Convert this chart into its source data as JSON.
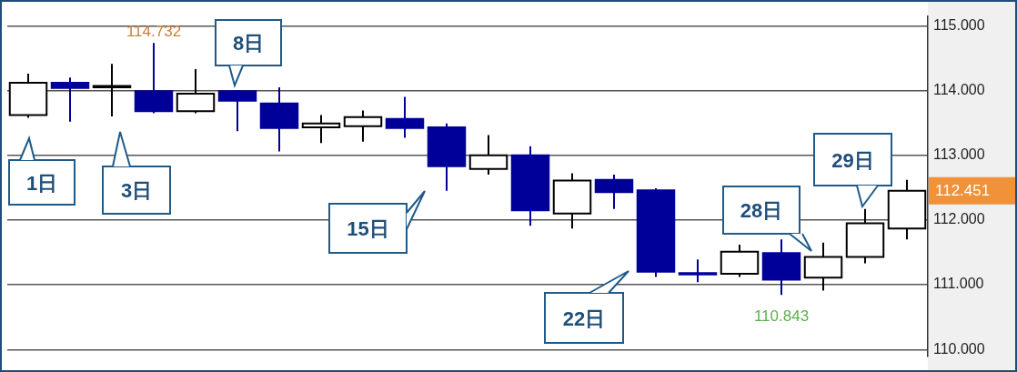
{
  "chart_data": {
    "type": "candlestick",
    "categories": [
      null,
      null,
      null,
      null,
      null,
      null,
      null,
      null,
      null,
      null,
      null,
      null,
      null,
      null,
      null,
      null,
      null,
      null,
      null,
      null,
      null,
      null
    ],
    "ohlc": [
      [
        113.62,
        114.26,
        113.58,
        114.12
      ],
      [
        114.12,
        114.2,
        113.52,
        114.04
      ],
      [
        114.05,
        114.41,
        113.6,
        114.07
      ],
      [
        113.99,
        114.732,
        113.65,
        113.68
      ],
      [
        113.68,
        114.33,
        113.65,
        113.95
      ],
      [
        113.99,
        114.0,
        113.37,
        113.84
      ],
      [
        113.8,
        114.05,
        113.06,
        113.42
      ],
      [
        113.43,
        113.62,
        113.19,
        113.49
      ],
      [
        113.45,
        113.69,
        113.21,
        113.59
      ],
      [
        113.56,
        113.9,
        113.27,
        113.42
      ],
      [
        113.43,
        113.49,
        112.45,
        112.83
      ],
      [
        112.79,
        113.31,
        112.7,
        113.0
      ],
      [
        113.0,
        113.14,
        111.91,
        112.15
      ],
      [
        112.1,
        112.72,
        111.87,
        112.61
      ],
      [
        112.62,
        112.7,
        112.17,
        112.43
      ],
      [
        112.46,
        112.49,
        111.12,
        111.2
      ],
      [
        111.18,
        111.39,
        111.04,
        111.16
      ],
      [
        111.17,
        111.62,
        111.12,
        111.51
      ],
      [
        111.49,
        111.7,
        110.843,
        111.08
      ],
      [
        111.11,
        111.65,
        110.91,
        111.43
      ],
      [
        111.43,
        112.17,
        111.33,
        111.95
      ],
      [
        111.87,
        112.62,
        111.7,
        112.451
      ]
    ],
    "ylim": [
      109.9,
      115.15
    ],
    "yticks": [
      {
        "value": 110,
        "label": "110.000"
      },
      {
        "value": 111,
        "label": "111.000"
      },
      {
        "value": 112,
        "label": "112.000"
      },
      {
        "value": 113,
        "label": "113.000"
      },
      {
        "value": 114,
        "label": "114.000"
      },
      {
        "value": 115,
        "label": "115.000"
      }
    ],
    "grid": "y",
    "tick_labels": "y",
    "legend": false,
    "annotations": [
      "1日",
      "3日",
      "8日",
      "15日",
      "22日",
      "28日",
      "29日",
      {
        "text": "114.732",
        "y": 114.732
      },
      {
        "text": "110.843",
        "y": 110.843
      },
      "112.451"
    ]
  }
}
